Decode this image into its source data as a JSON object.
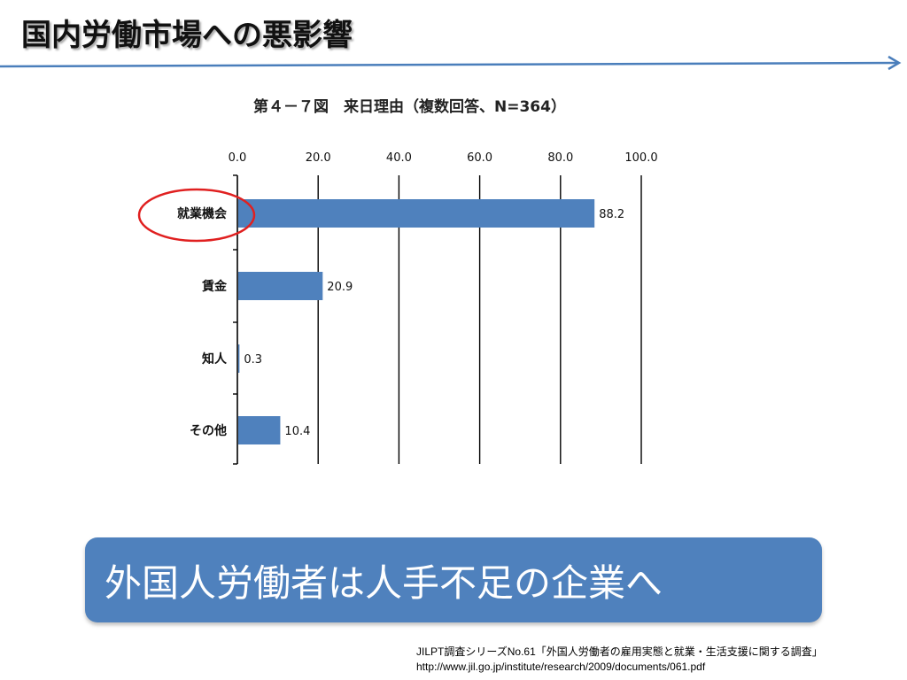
{
  "slide": {
    "title": "国内労働市場への悪影響"
  },
  "chart_data": {
    "type": "bar",
    "orientation": "horizontal",
    "title": "第４－７図　来日理由（複数回答、N=364）",
    "categories": [
      "就業機会",
      "賃金",
      "知人",
      "その他"
    ],
    "values": [
      88.2,
      20.9,
      0.3,
      10.4
    ],
    "value_labels": [
      "88.2",
      "20.9",
      "0.3",
      "10.4"
    ],
    "xlim": [
      0,
      100
    ],
    "x_ticks": [
      "0.0",
      "20.0",
      "40.0",
      "60.0",
      "80.0",
      "100.0"
    ],
    "x_tick_values": [
      0,
      20,
      40,
      60,
      80,
      100
    ],
    "xlabel": "",
    "ylabel": "",
    "axis_position": "top",
    "grid": "vertical",
    "bar_color": "#4f81bd",
    "highlight": {
      "category": "就業機会",
      "style": "red ellipse",
      "color": "#e02020"
    }
  },
  "callout": {
    "text": "外国人労働者は人手不足の企業へ",
    "color": "#4f81bd"
  },
  "source": {
    "line1": "JILPT調査シリーズNo.61「外国人労働者の雇用実態と就業・生活支援に関する調査」",
    "line2": "http://www.jil.go.jp/institute/research/2009/documents/061.pdf"
  },
  "colors": {
    "accent_line": "#4a7ebb",
    "bar": "#4f81bd",
    "highlight": "#e02020"
  }
}
